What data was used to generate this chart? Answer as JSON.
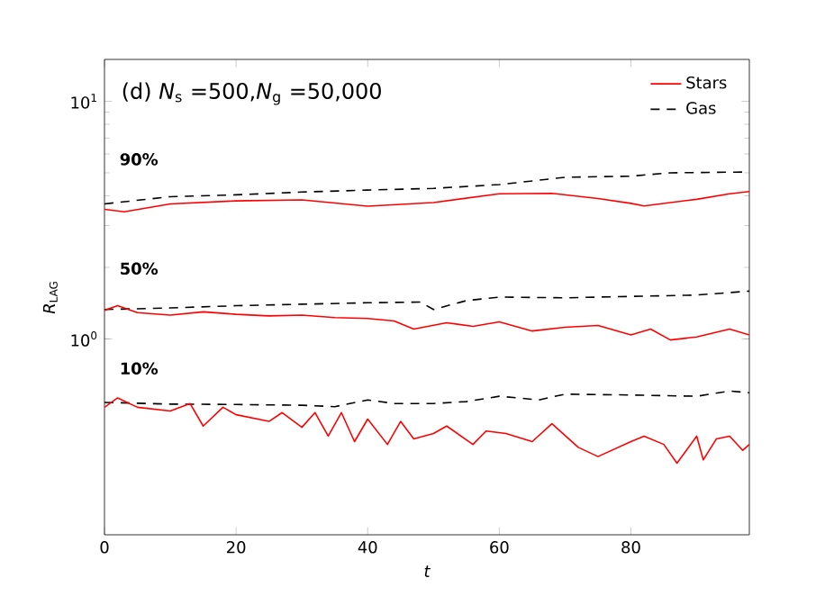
{
  "chart_data": {
    "type": "line",
    "xlabel": "t",
    "ylabel": "*R*$_{LAG}$",
    "xlim": [
      0,
      98
    ],
    "ylim": [
      0.15,
      15
    ],
    "xticks": [
      0,
      20,
      40,
      60,
      80
    ],
    "yticks": [
      {
        "value": 1,
        "label": "10$^{0}$"
      },
      {
        "value": 10,
        "label": "10$^{1}$"
      }
    ],
    "log": "y",
    "grid": false,
    "legend": "top right",
    "annotations": [
      "(d) *N*$_{s}$ =500,*N*$_{g}$ =50,000",
      "90%",
      "50%",
      "10%"
    ],
    "series": [
      {
        "name": "Stars",
        "color": "#ff0000",
        "line_style": "solid",
        "x": [
          0,
          3,
          10,
          20,
          30,
          40,
          50,
          60,
          68,
          75,
          80,
          82,
          90,
          95,
          98
        ],
        "values": [
          3.51,
          3.43,
          3.7,
          3.81,
          3.85,
          3.62,
          3.75,
          4.08,
          4.1,
          3.9,
          3.72,
          3.63,
          3.87,
          4.08,
          4.17
        ]
      },
      {
        "name": "Gas",
        "color": "#000000",
        "line_style": "dashed",
        "x": [
          0,
          10,
          20,
          30,
          40,
          50,
          60,
          70,
          80,
          86,
          98
        ],
        "values": [
          3.7,
          3.97,
          4.04,
          4.15,
          4.23,
          4.3,
          4.46,
          4.79,
          4.84,
          5.0,
          5.04
        ]
      },
      {
        "color": "#000000",
        "line_style": "dashed",
        "x": [
          0,
          10,
          20,
          30,
          40,
          48,
          50,
          55,
          60,
          70,
          80,
          90,
          98
        ],
        "values": [
          1.33,
          1.35,
          1.38,
          1.4,
          1.42,
          1.43,
          1.33,
          1.45,
          1.5,
          1.49,
          1.51,
          1.53,
          1.59
        ]
      },
      {
        "color": "#ff0000",
        "line_style": "solid",
        "x": [
          0,
          2,
          5,
          10,
          15,
          20,
          25,
          30,
          35,
          40,
          44,
          47,
          52,
          56,
          60,
          65,
          70,
          75,
          80,
          83,
          86,
          90,
          95,
          98
        ],
        "values": [
          1.32,
          1.38,
          1.29,
          1.26,
          1.3,
          1.27,
          1.25,
          1.26,
          1.23,
          1.22,
          1.19,
          1.1,
          1.17,
          1.13,
          1.18,
          1.08,
          1.12,
          1.14,
          1.04,
          1.1,
          0.99,
          1.02,
          1.1,
          1.04
        ]
      },
      {
        "color": "#000000",
        "line_style": "dashed",
        "x": [
          0,
          10,
          20,
          30,
          35,
          40,
          44,
          50,
          55,
          60,
          66,
          70,
          80,
          90,
          95,
          98
        ],
        "values": [
          0.541,
          0.532,
          0.53,
          0.526,
          0.519,
          0.554,
          0.535,
          0.535,
          0.545,
          0.574,
          0.554,
          0.586,
          0.581,
          0.574,
          0.604,
          0.594
        ]
      },
      {
        "color": "#ff0000",
        "line_style": "solid",
        "x": [
          0,
          2,
          5,
          10,
          13,
          15,
          18,
          20,
          25,
          27,
          30,
          32,
          34,
          36,
          38,
          40,
          43,
          45,
          47,
          50,
          52,
          56,
          58,
          61,
          65,
          68,
          72,
          75,
          80,
          82,
          85,
          87,
          90,
          91,
          93,
          95,
          97,
          98
        ],
        "values": [
          0.516,
          0.565,
          0.516,
          0.498,
          0.535,
          0.43,
          0.516,
          0.48,
          0.45,
          0.49,
          0.425,
          0.49,
          0.39,
          0.49,
          0.37,
          0.46,
          0.36,
          0.45,
          0.38,
          0.4,
          0.43,
          0.36,
          0.41,
          0.4,
          0.37,
          0.44,
          0.35,
          0.32,
          0.37,
          0.39,
          0.36,
          0.3,
          0.39,
          0.31,
          0.38,
          0.39,
          0.34,
          0.36
        ]
      }
    ]
  }
}
